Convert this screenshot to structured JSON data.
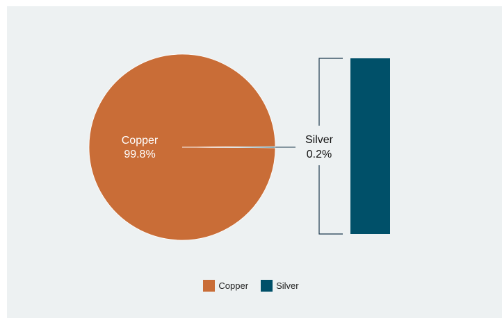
{
  "chart_data": {
    "type": "pie",
    "title": "",
    "slices": [
      {
        "name": "Copper",
        "value": 99.8,
        "label": "99.8%",
        "color": "#c96d37"
      },
      {
        "name": "Silver",
        "value": 0.2,
        "label": "0.2%",
        "color": "#005069"
      }
    ],
    "breakout": {
      "type": "bar",
      "segments": [
        {
          "name": "Silver",
          "value": 0.2,
          "color": "#005069"
        }
      ]
    },
    "legend": {
      "position": "bottom-center",
      "items": [
        "Copper",
        "Silver"
      ]
    },
    "background": "#edf1f2"
  }
}
